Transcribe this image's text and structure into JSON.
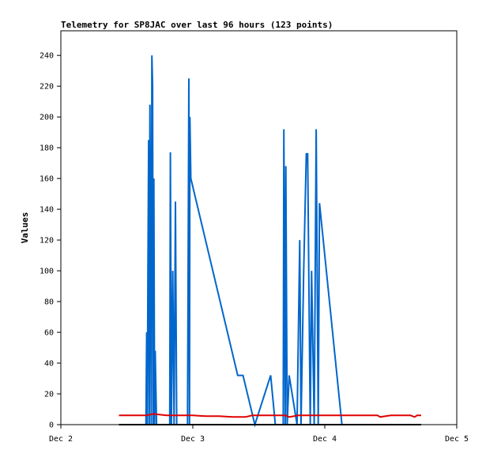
{
  "chart_data": {
    "type": "line",
    "title": "Telemetry for SP8JAC over last 96 hours (123 points)",
    "xlabel": "",
    "ylabel": "Values",
    "x_ticks": [
      "Dec 2",
      "Dec 3",
      "Dec 4",
      "Dec 5"
    ],
    "y_ticks": [
      0,
      20,
      40,
      60,
      80,
      100,
      120,
      140,
      160,
      180,
      200,
      220,
      240
    ],
    "xlim": [
      0,
      3
    ],
    "ylim": [
      0,
      256
    ],
    "grid": false,
    "series": [
      {
        "color": "#0066cc",
        "points": [
          [
            0.645,
            0
          ],
          [
            0.65,
            60
          ],
          [
            0.655,
            0
          ],
          [
            0.66,
            100
          ],
          [
            0.665,
            185
          ],
          [
            0.67,
            0
          ],
          [
            0.675,
            208
          ],
          [
            0.68,
            110
          ],
          [
            0.685,
            0
          ],
          [
            0.69,
            240
          ],
          [
            0.695,
            220
          ],
          [
            0.7,
            0
          ],
          [
            0.705,
            160
          ],
          [
            0.71,
            0
          ],
          [
            0.715,
            48
          ],
          [
            0.725,
            0
          ],
          [
            0.732,
            0
          ],
          [
            0.74,
            0
          ],
          [
            0.75,
            0
          ],
          [
            0.765,
            0
          ],
          [
            0.78,
            0
          ],
          [
            0.795,
            0
          ],
          [
            0.805,
            0
          ],
          [
            0.815,
            0
          ],
          [
            0.825,
            0
          ],
          [
            0.83,
            177
          ],
          [
            0.838,
            0
          ],
          [
            0.848,
            100
          ],
          [
            0.858,
            0
          ],
          [
            0.868,
            145
          ],
          [
            0.878,
            0
          ],
          [
            0.89,
            0
          ],
          [
            0.92,
            0
          ],
          [
            0.935,
            0
          ],
          [
            0.945,
            0
          ],
          [
            0.96,
            0
          ],
          [
            0.97,
            225
          ],
          [
            0.975,
            0
          ],
          [
            0.978,
            200
          ],
          [
            0.985,
            160
          ],
          [
            1.34,
            32
          ],
          [
            1.38,
            32
          ],
          [
            1.47,
            0
          ],
          [
            1.59,
            32
          ],
          [
            1.625,
            0
          ],
          [
            1.64,
            0
          ],
          [
            1.685,
            0
          ],
          [
            1.69,
            192
          ],
          [
            1.7,
            0
          ],
          [
            1.705,
            168
          ],
          [
            1.715,
            0
          ],
          [
            1.73,
            32
          ],
          [
            1.79,
            0
          ],
          [
            1.81,
            120
          ],
          [
            1.82,
            0
          ],
          [
            1.84,
            100
          ],
          [
            1.86,
            176
          ],
          [
            1.87,
            176
          ],
          [
            1.89,
            0
          ],
          [
            1.9,
            100
          ],
          [
            1.92,
            0
          ],
          [
            1.935,
            192
          ],
          [
            1.95,
            0
          ],
          [
            1.96,
            144
          ],
          [
            2.13,
            0
          ],
          [
            2.15,
            0
          ],
          [
            2.2,
            0
          ],
          [
            2.32,
            0
          ],
          [
            2.33,
            0
          ]
        ]
      },
      {
        "color": "#e00000",
        "points": [
          [
            0.44,
            6
          ],
          [
            0.5,
            6
          ],
          [
            0.6,
            6
          ],
          [
            0.65,
            6
          ],
          [
            0.7,
            7
          ],
          [
            0.8,
            6
          ],
          [
            0.9,
            6
          ],
          [
            1.0,
            6
          ],
          [
            1.1,
            5.5
          ],
          [
            1.2,
            5.5
          ],
          [
            1.3,
            5
          ],
          [
            1.4,
            5
          ],
          [
            1.45,
            6
          ],
          [
            1.55,
            6
          ],
          [
            1.6,
            6
          ],
          [
            1.7,
            6
          ],
          [
            1.73,
            5
          ],
          [
            1.8,
            6
          ],
          [
            1.9,
            6
          ],
          [
            2.0,
            6
          ],
          [
            2.1,
            6
          ],
          [
            2.2,
            6
          ],
          [
            2.3,
            6
          ],
          [
            2.4,
            6
          ],
          [
            2.42,
            5
          ],
          [
            2.5,
            6
          ],
          [
            2.6,
            6
          ],
          [
            2.65,
            6
          ],
          [
            2.68,
            5
          ],
          [
            2.7,
            6
          ],
          [
            2.73,
            6
          ]
        ]
      },
      {
        "color": "#000000",
        "points": [
          [
            0.44,
            0
          ],
          [
            2.73,
            0
          ]
        ]
      }
    ]
  }
}
